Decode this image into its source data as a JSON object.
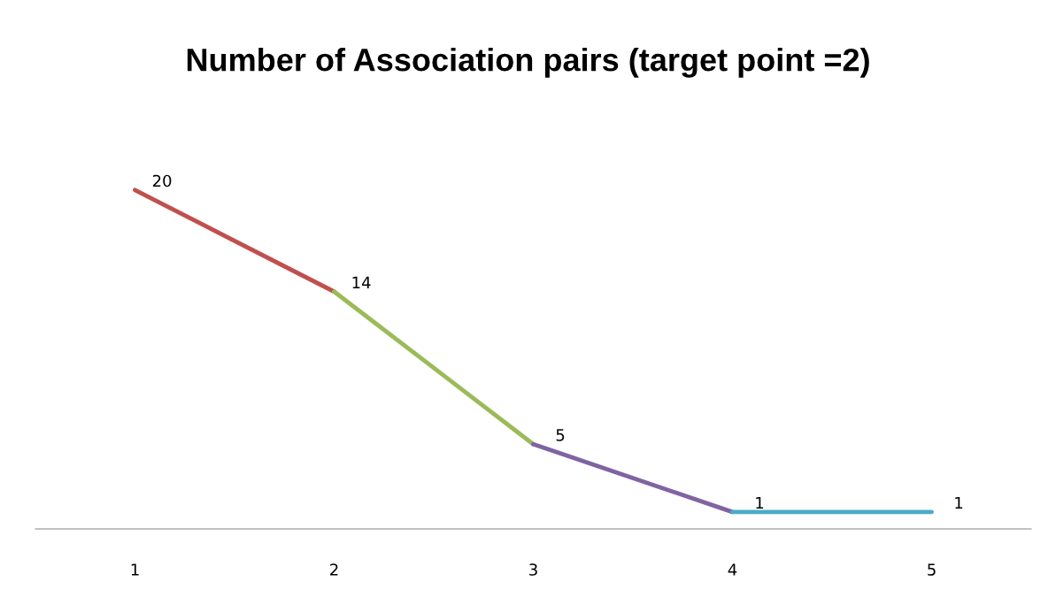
{
  "chart_data": {
    "type": "line",
    "title": "Number of Association pairs (target point =2)",
    "categories": [
      "1",
      "2",
      "3",
      "4",
      "5"
    ],
    "series": [
      {
        "color": "#c0504d",
        "values": [
          20,
          14,
          null,
          null,
          null
        ],
        "value_labels": [
          "20",
          null,
          null,
          null,
          null
        ]
      },
      {
        "color": "#9bbb59",
        "values": [
          null,
          14,
          5,
          null,
          null
        ],
        "value_labels": [
          null,
          "14",
          null,
          null,
          null
        ]
      },
      {
        "color": "#8064a2",
        "values": [
          null,
          null,
          5,
          1,
          null
        ],
        "value_labels": [
          null,
          null,
          "5",
          null,
          null
        ]
      },
      {
        "color": "#4bacc6",
        "values": [
          null,
          null,
          null,
          1,
          1
        ],
        "value_labels": [
          null,
          null,
          null,
          "1",
          "1"
        ]
      }
    ],
    "tick_labels": "x",
    "grid": false,
    "legend": false,
    "marker": "none",
    "line_style": "solid"
  }
}
